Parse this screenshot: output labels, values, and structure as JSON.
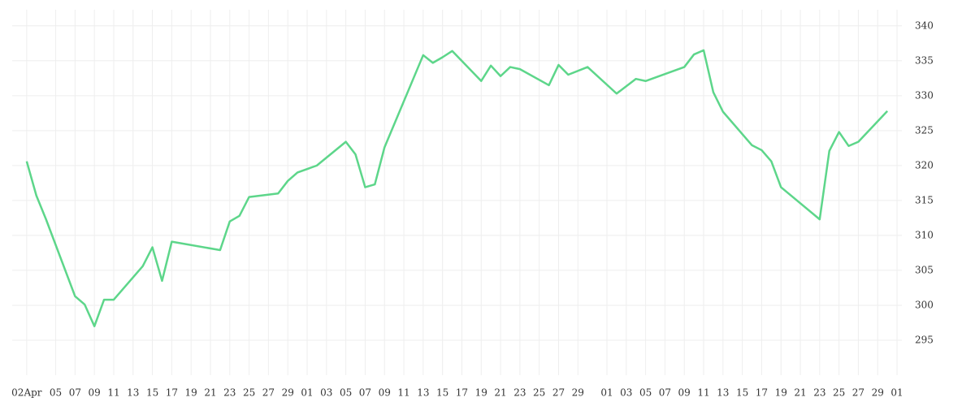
{
  "chart_data": {
    "type": "line",
    "x": [
      0,
      1,
      2,
      5,
      6,
      7,
      8,
      9,
      12,
      13,
      14,
      15,
      20,
      21,
      22,
      23,
      26,
      27,
      28,
      30,
      33,
      34,
      35,
      36,
      37,
      41,
      42,
      43,
      44,
      47,
      48,
      49,
      50,
      51,
      54,
      55,
      56,
      58,
      61,
      63,
      64,
      68,
      69,
      70,
      71,
      72,
      75,
      76,
      77,
      78,
      82,
      83,
      84,
      85,
      86,
      89
    ],
    "series": [
      {
        "color": "#5dd68a",
        "values": [
          320.6,
          315.7,
          312.3,
          301.3,
          300.1,
          297.0,
          300.8,
          300.8,
          305.6,
          308.3,
          303.5,
          309.1,
          307.9,
          312.0,
          312.8,
          315.5,
          316.0,
          317.8,
          319.0,
          320.0,
          323.4,
          321.6,
          316.9,
          317.3,
          322.6,
          335.8,
          334.7,
          335.5,
          336.4,
          332.1,
          334.3,
          332.8,
          334.1,
          333.8,
          331.5,
          334.4,
          333.0,
          334.1,
          330.3,
          332.4,
          332.1,
          334.1,
          335.9,
          336.5,
          330.5,
          327.7,
          322.9,
          322.2,
          320.6,
          316.9,
          312.3,
          322.1,
          324.8,
          322.8,
          323.4,
          327.8
        ]
      }
    ],
    "xlim": [
      -1.5,
      90.5
    ],
    "xticks": [
      {
        "value": 0,
        "label": "02Apr"
      },
      {
        "value": 3,
        "label": "05"
      },
      {
        "value": 5,
        "label": "07"
      },
      {
        "value": 7,
        "label": "09"
      },
      {
        "value": 9,
        "label": "11"
      },
      {
        "value": 11,
        "label": "13"
      },
      {
        "value": 13,
        "label": "15"
      },
      {
        "value": 15,
        "label": "17"
      },
      {
        "value": 17,
        "label": "19"
      },
      {
        "value": 19,
        "label": "21"
      },
      {
        "value": 21,
        "label": "23"
      },
      {
        "value": 23,
        "label": "25"
      },
      {
        "value": 25,
        "label": "27"
      },
      {
        "value": 27,
        "label": "29"
      },
      {
        "value": 29,
        "label": "01"
      },
      {
        "value": 31,
        "label": "03"
      },
      {
        "value": 33,
        "label": "05"
      },
      {
        "value": 35,
        "label": "07"
      },
      {
        "value": 37,
        "label": "09"
      },
      {
        "value": 39,
        "label": "11"
      },
      {
        "value": 41,
        "label": "13"
      },
      {
        "value": 43,
        "label": "15"
      },
      {
        "value": 45,
        "label": "17"
      },
      {
        "value": 47,
        "label": "19"
      },
      {
        "value": 49,
        "label": "21"
      },
      {
        "value": 51,
        "label": "23"
      },
      {
        "value": 53,
        "label": "25"
      },
      {
        "value": 55,
        "label": "27"
      },
      {
        "value": 57,
        "label": "29"
      },
      {
        "value": 60,
        "label": "01"
      },
      {
        "value": 62,
        "label": "03"
      },
      {
        "value": 64,
        "label": "05"
      },
      {
        "value": 66,
        "label": "07"
      },
      {
        "value": 68,
        "label": "09"
      },
      {
        "value": 70,
        "label": "11"
      },
      {
        "value": 72,
        "label": "13"
      },
      {
        "value": 74,
        "label": "15"
      },
      {
        "value": 76,
        "label": "17"
      },
      {
        "value": 78,
        "label": "19"
      },
      {
        "value": 80,
        "label": "21"
      },
      {
        "value": 82,
        "label": "23"
      },
      {
        "value": 84,
        "label": "25"
      },
      {
        "value": 86,
        "label": "27"
      },
      {
        "value": 88,
        "label": "29"
      },
      {
        "value": 90,
        "label": "01"
      }
    ],
    "ylim": [
      290,
      342.3
    ],
    "yticks": [
      295,
      300,
      305,
      310,
      315,
      320,
      325,
      330,
      335,
      340
    ],
    "grid": true
  }
}
